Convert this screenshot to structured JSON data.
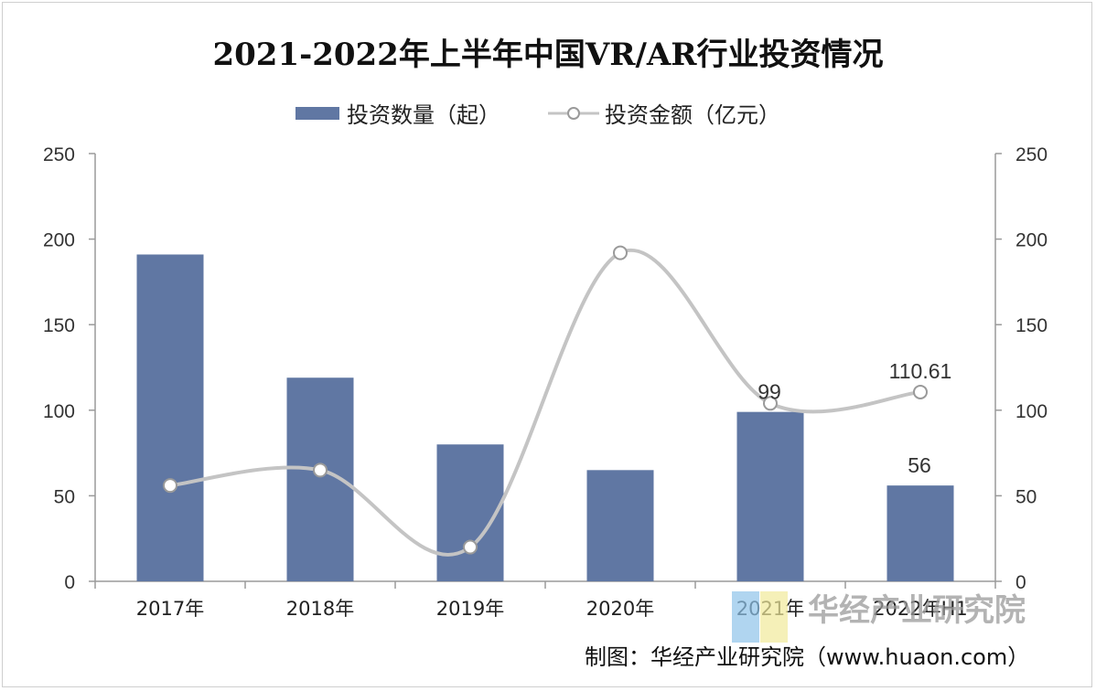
{
  "chart_data": {
    "type": "bar+line",
    "title": "2021-2022年上半年中国VR/AR行业投资情况",
    "categories": [
      "2017年",
      "2018年",
      "2019年",
      "2020年",
      "2021年",
      "2022年H1"
    ],
    "series": [
      {
        "name": "投资数量（起）",
        "kind": "bar",
        "axis": "left",
        "values": [
          191,
          119,
          80,
          65,
          99,
          56
        ],
        "data_labels": {
          "4": "99",
          "5": "56"
        }
      },
      {
        "name": "投资金额（亿元）",
        "kind": "line",
        "axis": "right",
        "values": [
          56,
          65,
          20,
          192,
          104,
          110.61
        ],
        "data_labels": {
          "5": "110.61"
        }
      }
    ],
    "y_left": {
      "min": 0,
      "max": 250,
      "ticks": [
        "0",
        "50",
        "100",
        "150",
        "200",
        "250"
      ]
    },
    "y_right": {
      "min": 0,
      "max": 250,
      "ticks": [
        "0",
        "50",
        "100",
        "150",
        "200",
        "250"
      ]
    },
    "legend_position": "top-center",
    "grid": false,
    "colors": {
      "bar": "#6077a3",
      "line": "#c4c4c4",
      "marker_fill": "#ffffff",
      "marker_stroke": "#9a9a9a"
    }
  },
  "source_text": "制图：华经产业研究院（www.huaon.com）",
  "watermark": {
    "text": "华经产业研究院",
    "url": "www.huaon.com"
  }
}
